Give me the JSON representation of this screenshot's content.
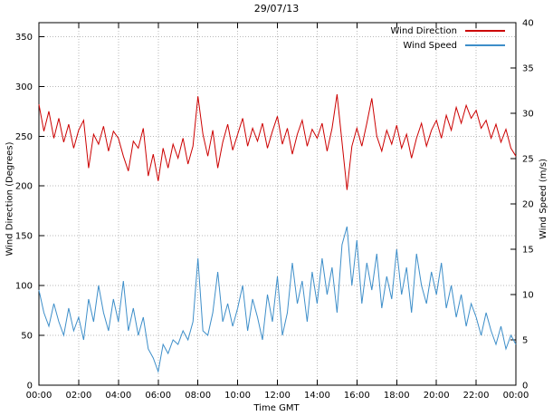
{
  "chart_data": {
    "type": "line",
    "title": "29/07/13",
    "xlabel": "Time GMT",
    "x_tick_labels": [
      "00:00",
      "02:00",
      "04:00",
      "06:00",
      "08:00",
      "10:00",
      "12:00",
      "14:00",
      "16:00",
      "18:00",
      "20:00",
      "22:00",
      "00:00"
    ],
    "x_range_hours": [
      0,
      24
    ],
    "grid": true,
    "axes": {
      "left": {
        "label": "Wind Direction (Degrees)",
        "ticks": [
          0,
          50,
          100,
          150,
          200,
          250,
          300,
          350
        ],
        "range": [
          0,
          364
        ]
      },
      "right": {
        "label": "Wind Speed (m/s)",
        "ticks": [
          0,
          5,
          10,
          15,
          20,
          25,
          30,
          35,
          40
        ],
        "range": [
          0,
          40
        ]
      }
    },
    "legend": {
      "position": "top-right-inside",
      "entries": [
        {
          "label": "Wind Direction",
          "color": "#cc0000",
          "axis": "left"
        },
        {
          "label": "Wind Speed",
          "color": "#3d8ec9",
          "axis": "right"
        }
      ]
    },
    "style": {
      "grid_color": "#b8b8b8",
      "border_color": "#000000",
      "background": "#ffffff",
      "text_color": "#000000"
    },
    "sampling": {
      "x_start_hours": 0,
      "x_step_hours": 0.25
    },
    "series": [
      {
        "name": "Wind Direction",
        "axis": "left",
        "color": "#cc0000",
        "values": [
          282,
          255,
          275,
          248,
          268,
          244,
          262,
          238,
          256,
          266,
          218,
          252,
          242,
          260,
          235,
          255,
          248,
          230,
          215,
          245,
          238,
          258,
          210,
          232,
          205,
          238,
          218,
          242,
          228,
          248,
          222,
          240,
          290,
          252,
          230,
          256,
          218,
          244,
          262,
          236,
          252,
          268,
          240,
          258,
          245,
          263,
          238,
          255,
          270,
          242,
          258,
          232,
          252,
          266,
          240,
          257,
          248,
          263,
          235,
          258,
          292,
          244,
          196,
          240,
          258,
          240,
          263,
          288,
          250,
          235,
          256,
          242,
          261,
          238,
          252,
          228,
          248,
          263,
          240,
          256,
          266,
          248,
          271,
          256,
          279,
          263,
          281,
          268,
          276,
          258,
          266,
          248,
          262,
          244,
          257,
          238,
          230
        ]
      },
      {
        "name": "Wind Speed",
        "axis": "right",
        "color": "#3d8ec9",
        "values": [
          10.5,
          8.0,
          6.5,
          9.0,
          7.0,
          5.5,
          8.5,
          6.0,
          7.5,
          5.0,
          9.5,
          7.0,
          11.0,
          8.0,
          6.0,
          9.5,
          7.0,
          11.5,
          6.0,
          8.5,
          5.5,
          7.5,
          4.0,
          3.0,
          1.5,
          4.5,
          3.5,
          5.0,
          4.5,
          6.0,
          5.0,
          7.0,
          14.0,
          6.0,
          5.5,
          8.0,
          12.5,
          7.0,
          9.0,
          6.5,
          8.5,
          11.0,
          6.0,
          9.5,
          7.5,
          5.0,
          10.0,
          7.0,
          12.0,
          5.5,
          8.0,
          13.5,
          9.0,
          11.5,
          7.0,
          12.5,
          9.0,
          14.0,
          10.0,
          13.0,
          8.0,
          15.5,
          17.5,
          11.0,
          16.0,
          9.0,
          13.5,
          10.5,
          14.5,
          8.5,
          12.0,
          9.5,
          15.0,
          10.0,
          13.0,
          8.0,
          14.5,
          11.0,
          9.0,
          12.5,
          10.0,
          13.5,
          8.5,
          11.0,
          7.5,
          10.0,
          6.5,
          9.0,
          7.5,
          5.5,
          8.0,
          6.0,
          4.5,
          6.5,
          4.0,
          5.5,
          4.5
        ]
      }
    ]
  }
}
